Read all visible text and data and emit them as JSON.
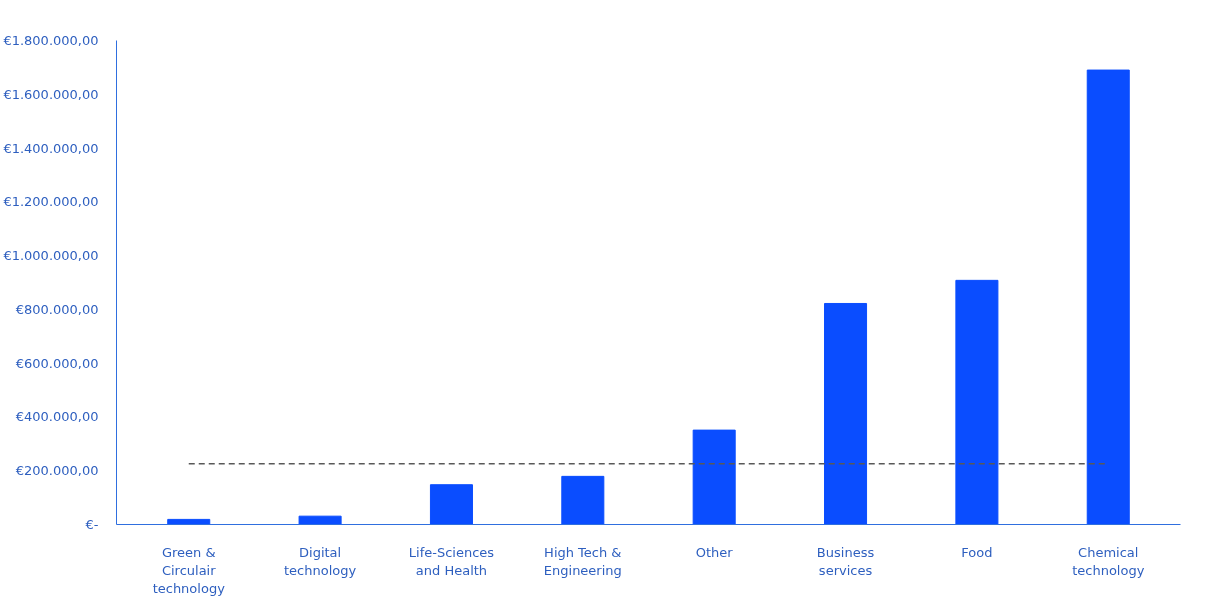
{
  "chart_data": {
    "type": "bar",
    "categories": [
      "Green & Circulair technology",
      "Digital technology",
      "Life-Sciences and Health",
      "High Tech & Engineering",
      "Other",
      "Business services",
      "Food",
      "Chemical technology"
    ],
    "values": [
      19000,
      31000,
      148000,
      179000,
      351000,
      822000,
      908000,
      1690000
    ],
    "color": "#0a4dff",
    "ylim": [
      0,
      1800000
    ],
    "yticks": [
      {
        "value": 0,
        "label": "€-"
      },
      {
        "value": 200000,
        "label": "€200.000,00"
      },
      {
        "value": 400000,
        "label": "€400.000,00"
      },
      {
        "value": 600000,
        "label": "€600.000,00"
      },
      {
        "value": 800000,
        "label": "€800.000,00"
      },
      {
        "value": 1000000,
        "label": "€1.000.000,00"
      },
      {
        "value": 1200000,
        "label": "€1.200.000,00"
      },
      {
        "value": 1400000,
        "label": "€1.400.000,00"
      },
      {
        "value": 1600000,
        "label": "€1.600.000,00"
      },
      {
        "value": 1800000,
        "label": "€1.800.000,00"
      }
    ],
    "ref_lines": [
      {
        "axis": "y",
        "value": 226000,
        "color": "#595959",
        "line_style": "dashed"
      }
    ],
    "grid": false
  }
}
